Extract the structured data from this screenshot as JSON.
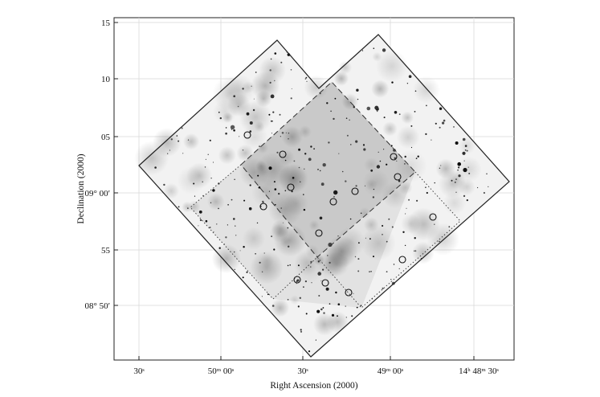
{
  "figure": {
    "xlabel": "Right Ascension (2000)",
    "ylabel": "Declination (2000)",
    "x_ticks": [
      {
        "label": "30ˢ"
      },
      {
        "label": "50ᵐ 00ˢ"
      },
      {
        "label": "30ˢ"
      },
      {
        "label": "49ᵐ 00ˢ"
      },
      {
        "label": "14ʰ 48ᵐ 30ˢ"
      }
    ],
    "y_ticks": [
      {
        "label": "15"
      },
      {
        "label": "10"
      },
      {
        "label": "05"
      },
      {
        "label": "09° 00′"
      },
      {
        "label": "55"
      },
      {
        "label": "08° 50′"
      }
    ],
    "colors": {
      "frame": "#222222",
      "grid": "#d9d9d9",
      "source_marker": "#111111"
    },
    "source_marker_count": 15
  }
}
